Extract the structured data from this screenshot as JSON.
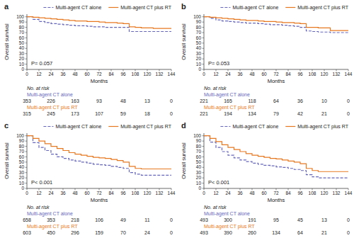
{
  "chart_data": [
    {
      "type": "step",
      "title": "a",
      "annotations": [
        "P= 0.057"
      ],
      "xlabel": "Months",
      "ylabel": "Overall survival",
      "x": [
        0,
        6,
        12,
        18,
        24,
        30,
        36,
        42,
        48,
        54,
        60,
        66,
        72,
        78,
        84,
        90,
        96,
        102,
        108,
        114,
        120,
        126,
        132,
        138,
        144
      ],
      "series": [
        {
          "name": "Multi-agent CT alone",
          "color": "#6666bb",
          "line_style": "dashed",
          "values": [
            100,
            95,
            91,
            89,
            87,
            86,
            85,
            84,
            83,
            83,
            82,
            81,
            81,
            80,
            80,
            80,
            80,
            72,
            72,
            72,
            72,
            72,
            72,
            72,
            72
          ]
        },
        {
          "name": "Multi-agent CT plus RT",
          "color": "#e87820",
          "line_style": "solid",
          "values": [
            100,
            99,
            98,
            97,
            96,
            95,
            94,
            93,
            92,
            92,
            91,
            91,
            90,
            89,
            89,
            88,
            87,
            81,
            80,
            79,
            79,
            78,
            78,
            78,
            78
          ]
        }
      ],
      "xlim": [
        0,
        144
      ],
      "xticks": [
        0,
        12,
        24,
        36,
        48,
        60,
        72,
        84,
        96,
        108,
        120,
        132,
        144
      ],
      "ylim": [
        0,
        105
      ],
      "yticks": [
        0,
        10,
        20,
        30,
        40,
        50,
        60,
        70,
        80,
        90,
        100
      ],
      "legend": "top",
      "risk_table": {
        "header": "No. at risk",
        "x": [
          0,
          24,
          48,
          72,
          96,
          120,
          144
        ],
        "rows": [
          {
            "name": "Multi-agent CT alone",
            "values": [
              353,
              226,
              163,
              93,
              48,
              13,
              0
            ]
          },
          {
            "name": "Multi-agent CT plus RT",
            "values": [
              315,
              245,
              173,
              107,
              59,
              18,
              0
            ]
          }
        ]
      }
    },
    {
      "type": "step",
      "title": "b",
      "annotations": [
        "P= 0.053"
      ],
      "xlabel": "Months",
      "ylabel": "Overall survival",
      "x": [
        0,
        6,
        12,
        18,
        24,
        30,
        36,
        42,
        48,
        54,
        60,
        66,
        72,
        78,
        84,
        90,
        96,
        102,
        108,
        114,
        120,
        126,
        132,
        138,
        144
      ],
      "series": [
        {
          "name": "Multi-agent CT alone",
          "color": "#6666bb",
          "line_style": "dashed",
          "values": [
            100,
            97,
            94,
            92,
            91,
            90,
            89,
            88,
            88,
            87,
            86,
            85,
            85,
            84,
            83,
            82,
            80,
            73,
            72,
            71,
            71,
            70,
            70,
            70,
            70
          ]
        },
        {
          "name": "Multi-agent CT plus RT",
          "color": "#e87820",
          "line_style": "solid",
          "values": [
            100,
            99,
            98,
            97,
            96,
            95,
            94,
            93,
            93,
            92,
            91,
            91,
            90,
            89,
            89,
            88,
            87,
            80,
            80,
            79,
            79,
            74,
            74,
            74,
            74
          ]
        }
      ],
      "xlim": [
        0,
        144
      ],
      "xticks": [
        0,
        12,
        24,
        36,
        48,
        60,
        72,
        84,
        96,
        108,
        120,
        132,
        144
      ],
      "ylim": [
        0,
        105
      ],
      "yticks": [
        0,
        10,
        20,
        30,
        40,
        50,
        60,
        70,
        80,
        90,
        100
      ],
      "legend": "top",
      "risk_table": {
        "header": "No. at risk",
        "x": [
          0,
          24,
          48,
          72,
          96,
          120,
          144
        ],
        "rows": [
          {
            "name": "Multi-agent CT alone",
            "values": [
              221,
              165,
              118,
              64,
              36,
              10,
              0
            ]
          },
          {
            "name": "Multi-agent CT plus RT",
            "values": [
              221,
              194,
              134,
              79,
              42,
              21,
              0
            ]
          }
        ]
      }
    },
    {
      "type": "step",
      "title": "c",
      "annotations": [
        "P< 0.001"
      ],
      "xlabel": "Months",
      "ylabel": "Overall survival",
      "x": [
        0,
        6,
        12,
        18,
        24,
        30,
        36,
        42,
        48,
        54,
        60,
        66,
        72,
        78,
        84,
        90,
        96,
        102,
        108,
        114,
        120,
        126,
        132,
        138,
        144
      ],
      "series": [
        {
          "name": "Multi-agent CT alone",
          "color": "#6666bb",
          "line_style": "dashed",
          "values": [
            100,
            87,
            78,
            72,
            65,
            60,
            57,
            54,
            52,
            50,
            48,
            46,
            45,
            44,
            42,
            40,
            38,
            30,
            27,
            25,
            25,
            25,
            25,
            25,
            25
          ]
        },
        {
          "name": "Multi-agent CT plus RT",
          "color": "#e87820",
          "line_style": "solid",
          "values": [
            100,
            95,
            90,
            85,
            80,
            76,
            72,
            68,
            65,
            63,
            61,
            59,
            58,
            57,
            55,
            53,
            50,
            42,
            38,
            37,
            37,
            37,
            37,
            37,
            37
          ]
        }
      ],
      "xlim": [
        0,
        144
      ],
      "xticks": [
        0,
        12,
        24,
        36,
        48,
        60,
        72,
        84,
        96,
        108,
        120,
        132,
        144
      ],
      "ylim": [
        0,
        105
      ],
      "yticks": [
        0,
        10,
        20,
        30,
        40,
        50,
        60,
        70,
        80,
        90,
        100
      ],
      "legend": "top",
      "risk_table": {
        "header": "No. at risk",
        "x": [
          0,
          24,
          48,
          72,
          96,
          120,
          144
        ],
        "rows": [
          {
            "name": "Multi-agent CT alone",
            "values": [
              658,
              353,
              218,
              106,
              49,
              11,
              0
            ]
          },
          {
            "name": "Multi-agent CT plus RT",
            "values": [
              603,
              450,
              296,
              159,
              70,
              24,
              0
            ]
          }
        ]
      }
    },
    {
      "type": "step",
      "title": "d",
      "annotations": [
        "P< 0.001"
      ],
      "xlabel": "Months",
      "ylabel": "Overall survival",
      "x": [
        0,
        6,
        12,
        18,
        24,
        30,
        36,
        42,
        48,
        54,
        60,
        66,
        72,
        78,
        84,
        90,
        96,
        102,
        108,
        114,
        120,
        126,
        132,
        138,
        144
      ],
      "series": [
        {
          "name": "Multi-agent CT alone",
          "color": "#6666bb",
          "line_style": "dashed",
          "values": [
            100,
            88,
            78,
            70,
            63,
            58,
            54,
            51,
            48,
            46,
            44,
            43,
            41,
            40,
            38,
            36,
            34,
            26,
            22,
            20,
            20,
            20,
            20,
            20,
            20
          ]
        },
        {
          "name": "Multi-agent CT plus RT",
          "color": "#e87820",
          "line_style": "solid",
          "values": [
            100,
            95,
            89,
            83,
            78,
            74,
            70,
            66,
            63,
            61,
            59,
            57,
            56,
            54,
            52,
            50,
            47,
            38,
            34,
            32,
            32,
            32,
            32,
            32,
            32
          ]
        }
      ],
      "xlim": [
        0,
        144
      ],
      "xticks": [
        0,
        12,
        24,
        36,
        48,
        60,
        72,
        84,
        96,
        108,
        120,
        132,
        144
      ],
      "ylim": [
        0,
        105
      ],
      "yticks": [
        0,
        10,
        20,
        30,
        40,
        50,
        60,
        70,
        80,
        90,
        100
      ],
      "legend": "top",
      "risk_table": {
        "header": "No. at risk",
        "x": [
          0,
          24,
          48,
          72,
          96,
          120,
          144
        ],
        "rows": [
          {
            "name": "Multi-agent CT alone",
            "values": [
              493,
              300,
              191,
              95,
              45,
              13,
              0
            ]
          },
          {
            "name": "Multi-agent CT plus RT",
            "values": [
              493,
              390,
              260,
              134,
              64,
              21,
              0
            ]
          }
        ]
      }
    }
  ]
}
